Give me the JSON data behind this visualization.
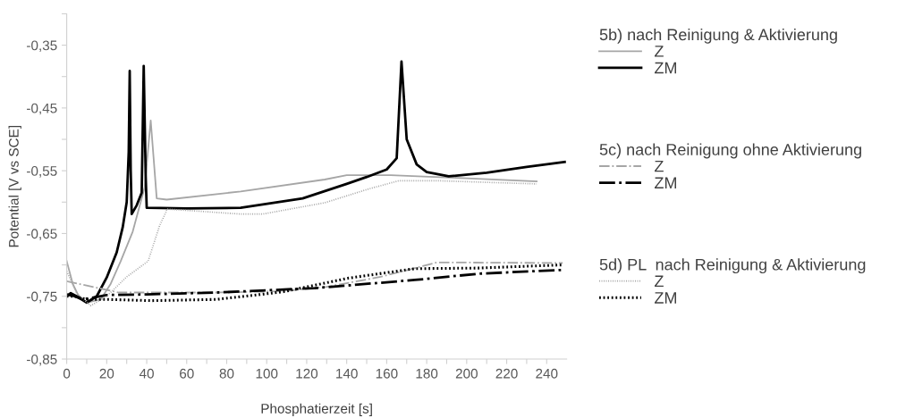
{
  "chart_data": {
    "type": "line",
    "xlabel": "Phosphatierzeit [s]",
    "ylabel": "Potential [V vs SCE]",
    "xlim": [
      0,
      250
    ],
    "ylim": [
      -0.85,
      -0.3
    ],
    "xticks": [
      0,
      {
        "value": 10,
        "label": null
      },
      20,
      {
        "value": 30,
        "label": null
      },
      40,
      {
        "value": 50,
        "label": null
      },
      60,
      {
        "value": 70,
        "label": null
      },
      80,
      {
        "value": 90,
        "label": null
      },
      100,
      {
        "value": 110,
        "label": null
      },
      120,
      {
        "value": 130,
        "label": null
      },
      140,
      {
        "value": 150,
        "label": null
      },
      160,
      {
        "value": 170,
        "label": null
      },
      180,
      {
        "value": 190,
        "label": null
      },
      200,
      {
        "value": 210,
        "label": null
      },
      220,
      {
        "value": 230,
        "label": null
      },
      240
    ],
    "yticks": [
      {
        "value": -0.85,
        "label": "-0,85"
      },
      {
        "value": -0.8,
        "label": null
      },
      {
        "value": -0.75,
        "label": "-0,75"
      },
      {
        "value": -0.7,
        "label": null
      },
      {
        "value": -0.65,
        "label": "-0,65"
      },
      {
        "value": -0.6,
        "label": null
      },
      {
        "value": -0.55,
        "label": "-0,55"
      },
      {
        "value": -0.5,
        "label": null
      },
      {
        "value": -0.45,
        "label": "-0,45"
      },
      {
        "value": -0.4,
        "label": null
      },
      {
        "value": -0.35,
        "label": "-0,35"
      },
      {
        "value": -0.3,
        "label": null
      }
    ],
    "grid": false,
    "legend": "right",
    "marker": "none",
    "annotations": [
      "5b) nach Reinigung & Aktivierung",
      "5c) nach Reinigung ohne Aktivierung",
      "5d) PL  nach Reinigung & Aktivierung"
    ],
    "series": [
      {
        "name": "Z",
        "color": "#a6a6a6",
        "line_style": "solid",
        "x": [
          0,
          3,
          6,
          10,
          17,
          22,
          27,
          33,
          39,
          42,
          45,
          50,
          87,
          129,
          140,
          162,
          200,
          235
        ],
        "values": [
          -0.694,
          -0.73,
          -0.75,
          -0.76,
          -0.755,
          -0.73,
          -0.694,
          -0.647,
          -0.576,
          -0.47,
          -0.594,
          -0.596,
          -0.583,
          -0.564,
          -0.557,
          -0.557,
          -0.562,
          -0.567
        ]
      },
      {
        "name": "ZM",
        "color": "#000000",
        "line_style": "solid",
        "x": [
          0,
          2,
          5,
          10,
          15,
          20,
          25,
          28,
          30,
          31,
          31.5,
          32,
          32.5,
          35,
          37.5,
          38.5,
          39.5,
          40,
          60,
          87,
          118,
          140,
          150,
          160,
          165,
          167.4,
          170,
          175,
          180,
          191,
          210,
          230,
          249
        ],
        "values": [
          -0.75,
          -0.745,
          -0.75,
          -0.76,
          -0.75,
          -0.72,
          -0.68,
          -0.64,
          -0.6,
          -0.52,
          -0.391,
          -0.55,
          -0.619,
          -0.605,
          -0.585,
          -0.383,
          -0.56,
          -0.609,
          -0.61,
          -0.609,
          -0.594,
          -0.571,
          -0.56,
          -0.548,
          -0.53,
          -0.376,
          -0.5,
          -0.54,
          -0.552,
          -0.559,
          -0.553,
          -0.544,
          -0.536
        ]
      },
      {
        "name": "Z",
        "color": "#a6a6a6",
        "line_style": "dashdot",
        "x": [
          0,
          26,
          75,
          108,
          130,
          157,
          178,
          185,
          248
        ],
        "values": [
          -0.726,
          -0.744,
          -0.744,
          -0.742,
          -0.735,
          -0.719,
          -0.702,
          -0.696,
          -0.697
        ]
      },
      {
        "name": "ZM",
        "color": "#000000",
        "line_style": "dashdot",
        "x": [
          0,
          4,
          8,
          20,
          40,
          75,
          124,
          174,
          206,
          248
        ],
        "values": [
          -0.747,
          -0.75,
          -0.755,
          -0.748,
          -0.747,
          -0.744,
          -0.737,
          -0.724,
          -0.714,
          -0.708
        ]
      },
      {
        "name": "Z",
        "color": "#a6a6a6",
        "line_style": "dotted",
        "x": [
          0,
          5,
          12,
          20,
          30,
          40.7,
          46.5,
          49.6,
          50,
          87,
          98,
          129,
          151,
          166,
          186,
          235
        ],
        "values": [
          -0.71,
          -0.745,
          -0.765,
          -0.75,
          -0.719,
          -0.694,
          -0.637,
          -0.616,
          -0.611,
          -0.619,
          -0.619,
          -0.601,
          -0.579,
          -0.566,
          -0.566,
          -0.571
        ]
      },
      {
        "name": "ZM",
        "color": "#000000",
        "line_style": "dotted",
        "x": [
          0,
          4,
          10,
          20,
          42.5,
          75,
          108,
          141,
          174,
          206,
          248
        ],
        "values": [
          -0.75,
          -0.75,
          -0.755,
          -0.755,
          -0.757,
          -0.755,
          -0.743,
          -0.721,
          -0.706,
          -0.705,
          -0.7
        ]
      }
    ]
  }
}
